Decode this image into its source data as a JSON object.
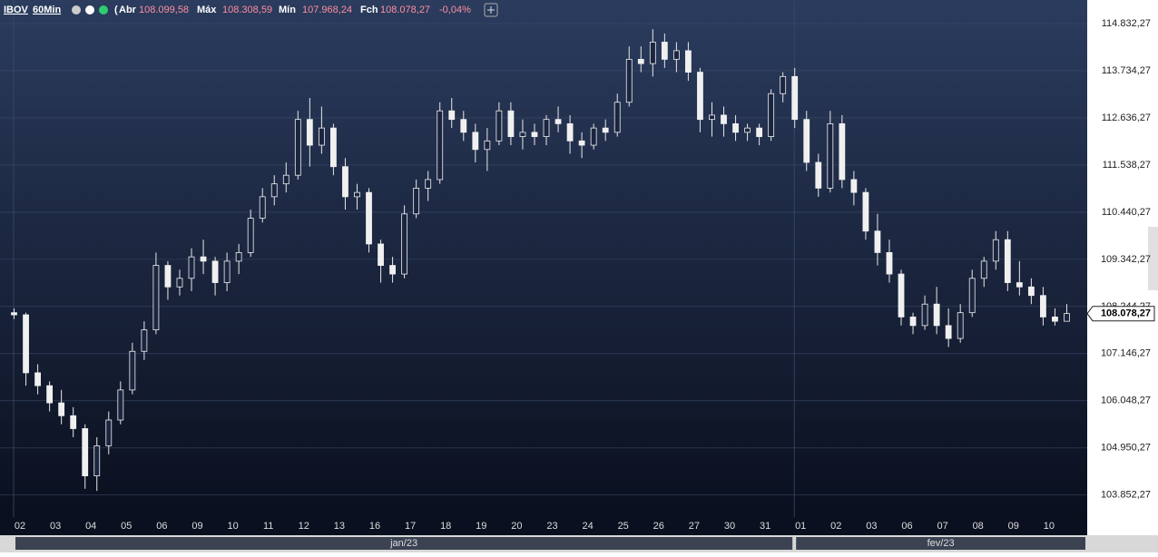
{
  "chart_data": {
    "type": "candlestick",
    "header": {
      "symbol": "IBOV",
      "interval": "60Min",
      "open_label": "Abr",
      "open": {
        "value": 108099.58,
        "label": "108.099,58"
      },
      "high_label": "Máx",
      "high": {
        "value": 108308.59,
        "label": "108.308,59"
      },
      "low_label": "Mín",
      "low": {
        "value": 107968.24,
        "label": "107.968,24"
      },
      "close_label": "Fch",
      "close": {
        "value": 108078.27,
        "label": "108.078,27"
      },
      "change": {
        "value": -0.04,
        "label": "-0,04%"
      }
    },
    "last_price": {
      "value": 108078.27,
      "label": "108.078,27"
    },
    "x_labels": [
      "02",
      "03",
      "04",
      "05",
      "06",
      "09",
      "10",
      "11",
      "12",
      "13",
      "16",
      "17",
      "18",
      "19",
      "20",
      "23",
      "24",
      "25",
      "26",
      "27",
      "30",
      "31",
      "01",
      "02",
      "03",
      "06",
      "07",
      "08",
      "09",
      "10"
    ],
    "months": [
      "jan/23",
      "fev/23"
    ],
    "candles": {
      "open": [
        108100,
        108050,
        106700,
        106400,
        106000,
        105700,
        105400,
        104300,
        105000,
        105600,
        106300,
        107200,
        107700,
        109200,
        108700,
        108900,
        109400,
        109300,
        108800,
        109300,
        109500,
        110300,
        110800,
        111100,
        111300,
        112600,
        112000,
        112400,
        111500,
        110800,
        110900,
        109700,
        109200,
        109000,
        110400,
        111000,
        111200,
        112800,
        112600,
        112300,
        111900,
        112100,
        112800,
        112200,
        112300,
        112200,
        112600,
        112500,
        112100,
        112000,
        112400,
        112300,
        113000,
        114000,
        113900,
        114400,
        114000,
        114200,
        113700,
        112600,
        112700,
        112500,
        112300,
        112400,
        112200,
        113200,
        113600,
        112600,
        111600,
        111000,
        112500,
        111200,
        110900,
        110000,
        109500,
        109000,
        108000,
        107800,
        108300,
        107800,
        107500,
        108100,
        108900,
        109300,
        109800,
        108800,
        108700,
        108500,
        108000,
        107900
      ],
      "high": [
        108200,
        108100,
        106900,
        106500,
        106300,
        105900,
        105500,
        105200,
        105800,
        106500,
        107400,
        107900,
        109500,
        109300,
        109100,
        109600,
        109800,
        109400,
        109500,
        109700,
        110500,
        111000,
        111300,
        111600,
        112800,
        113100,
        112900,
        112500,
        111700,
        111100,
        111000,
        109800,
        109400,
        110600,
        111200,
        111400,
        113000,
        113100,
        112800,
        112500,
        112400,
        113000,
        113000,
        112600,
        112500,
        112700,
        112900,
        112700,
        112300,
        112500,
        112600,
        113200,
        114300,
        114300,
        114700,
        114600,
        114400,
        114400,
        113800,
        113000,
        112900,
        112700,
        112500,
        112500,
        113300,
        113700,
        113800,
        112800,
        111800,
        112800,
        112700,
        111400,
        111000,
        110400,
        109800,
        109100,
        108100,
        108500,
        108700,
        108200,
        108300,
        109100,
        109400,
        110000,
        110000,
        109300,
        108900,
        108700,
        108200,
        108300
      ],
      "low": [
        107950,
        106400,
        106200,
        105800,
        105500,
        105200,
        104000,
        103950,
        104800,
        105500,
        106200,
        107000,
        107600,
        108400,
        108500,
        108600,
        109000,
        108500,
        108600,
        109000,
        109400,
        110200,
        110600,
        110900,
        111200,
        111500,
        111800,
        111300,
        110500,
        110500,
        109500,
        108800,
        108800,
        108900,
        110300,
        110700,
        111100,
        112400,
        112100,
        111600,
        111400,
        112000,
        112000,
        111900,
        112000,
        112000,
        112300,
        111800,
        111700,
        111900,
        112100,
        112200,
        112900,
        113700,
        113600,
        113800,
        113700,
        113500,
        112300,
        112200,
        112200,
        112100,
        112100,
        112000,
        112100,
        113000,
        112400,
        111400,
        110800,
        110900,
        111000,
        110600,
        109800,
        109200,
        108800,
        107800,
        107600,
        107700,
        107600,
        107300,
        107400,
        108000,
        108700,
        109100,
        108600,
        108500,
        108300,
        107800,
        107800,
        107900
      ],
      "close": [
        108050,
        106700,
        106400,
        106000,
        105700,
        105400,
        104300,
        105000,
        105600,
        106300,
        107200,
        107700,
        109200,
        108700,
        108900,
        109400,
        109300,
        108800,
        109300,
        109500,
        110300,
        110800,
        111100,
        111300,
        112600,
        112000,
        112400,
        111500,
        110800,
        110900,
        109700,
        109200,
        109000,
        110400,
        111000,
        111200,
        112800,
        112600,
        112300,
        111900,
        112100,
        112800,
        112200,
        112300,
        112200,
        112600,
        112500,
        112100,
        112000,
        112400,
        112300,
        113000,
        114000,
        113900,
        114400,
        114000,
        114200,
        113700,
        112600,
        112700,
        112500,
        112300,
        112400,
        112200,
        113200,
        113600,
        112600,
        111600,
        111000,
        112500,
        111200,
        110900,
        110000,
        109500,
        109000,
        108000,
        107800,
        108300,
        107800,
        107500,
        108100,
        108900,
        109300,
        109800,
        108800,
        108700,
        108500,
        108000,
        107900,
        108080
      ]
    },
    "ylim": [
      103340,
      115381.27
    ],
    "yticks": [
      {
        "value": 114832.27,
        "label": "114.832,27"
      },
      {
        "value": 113734.27,
        "label": "113.734,27"
      },
      {
        "value": 112636.27,
        "label": "112.636,27"
      },
      {
        "value": 111538.27,
        "label": "111.538,27"
      },
      {
        "value": 110440.27,
        "label": "110.440,27"
      },
      {
        "value": 109342.27,
        "label": "109.342,27"
      },
      {
        "value": 108244.27,
        "label": "108.244,27"
      },
      {
        "value": 107146.27,
        "label": "107.146,27"
      },
      {
        "value": 106048.27,
        "label": "106.048,27"
      },
      {
        "value": 104950.27,
        "label": "104.950,27"
      },
      {
        "value": 103852.27,
        "label": "103.852,27"
      }
    ],
    "grid": true
  }
}
